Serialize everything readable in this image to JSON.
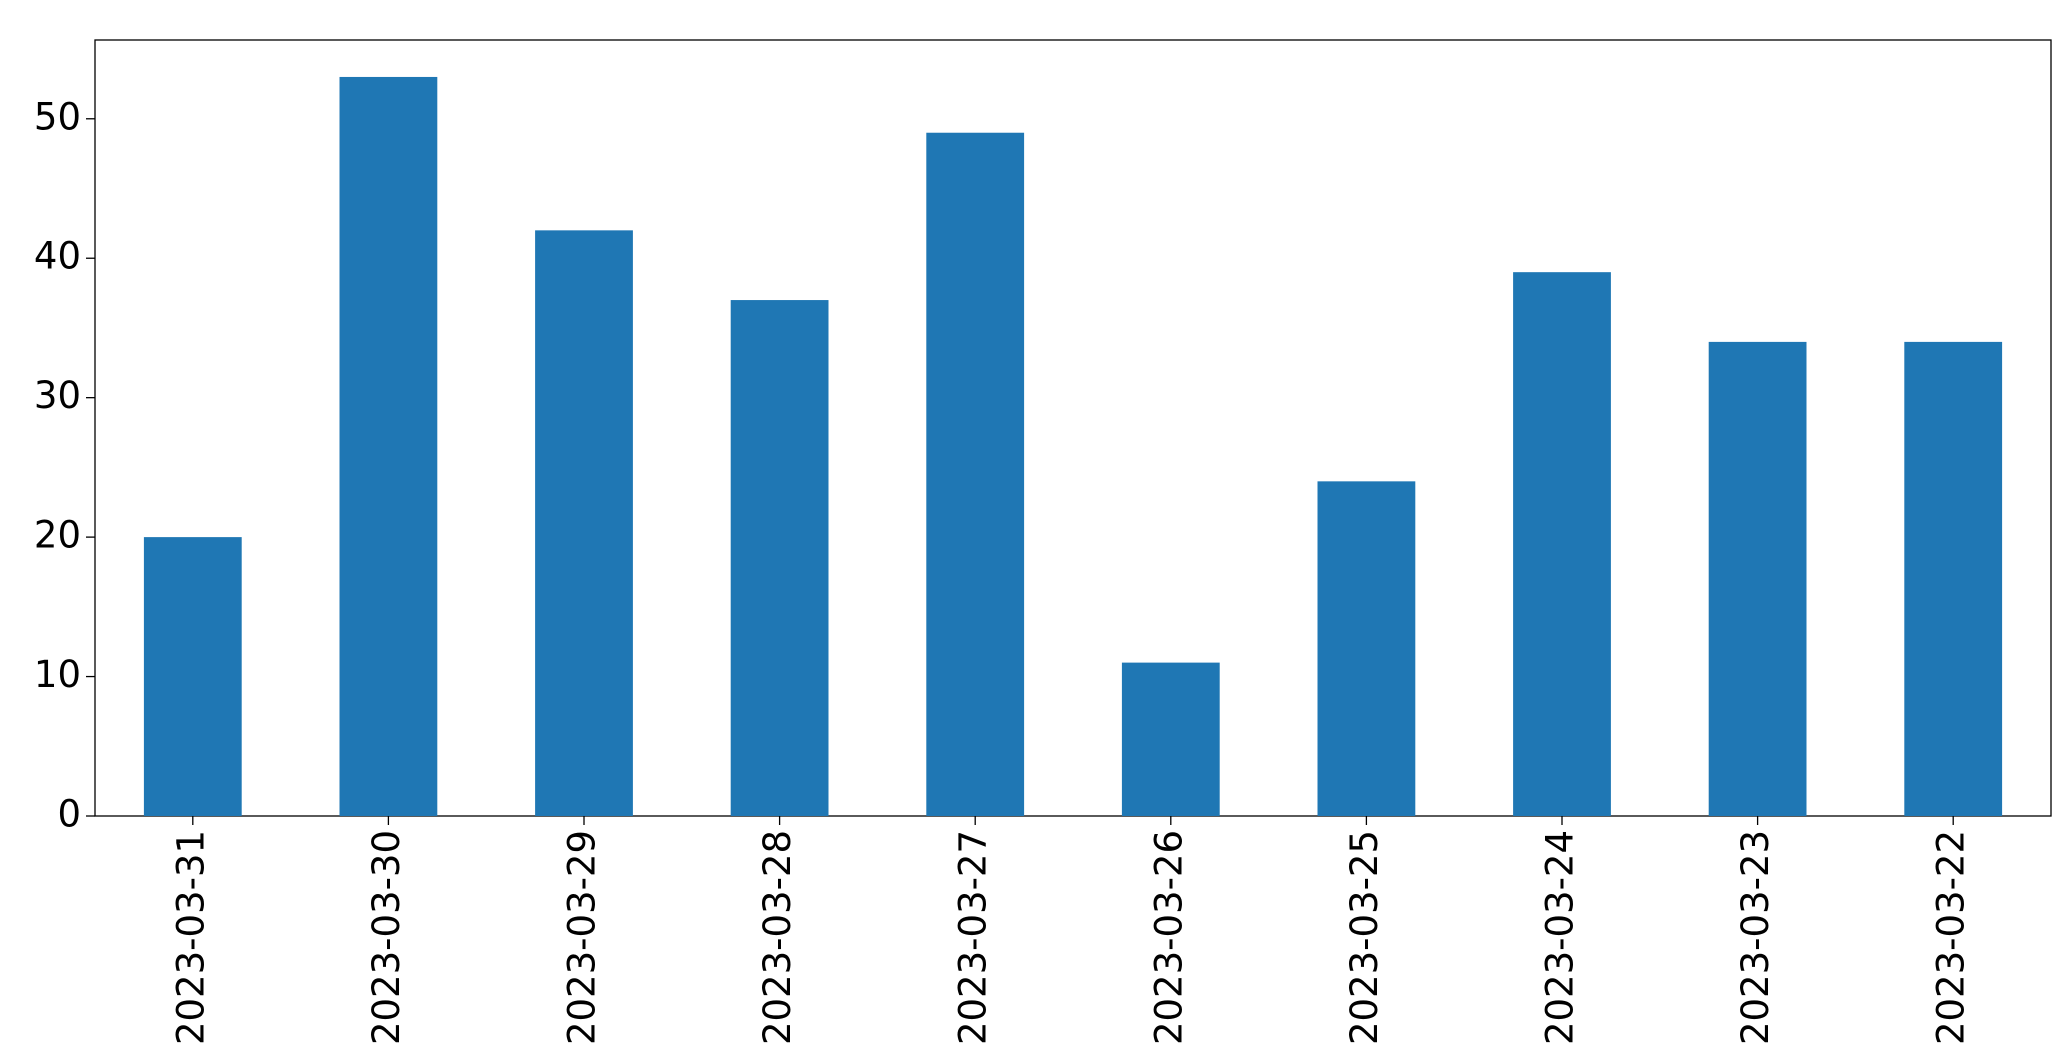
{
  "chart_data": {
    "type": "bar",
    "categories": [
      "2023-03-31",
      "2023-03-30",
      "2023-03-29",
      "2023-03-28",
      "2023-03-27",
      "2023-03-26",
      "2023-03-25",
      "2023-03-24",
      "2023-03-23",
      "2023-03-22"
    ],
    "values": [
      20,
      53,
      42,
      37,
      49,
      11,
      24,
      39,
      34,
      34
    ],
    "color": "#1f77b4",
    "ylim": [
      0,
      55.65
    ],
    "yticks": [
      0,
      10,
      20,
      30,
      40,
      50
    ],
    "grid": false
  }
}
